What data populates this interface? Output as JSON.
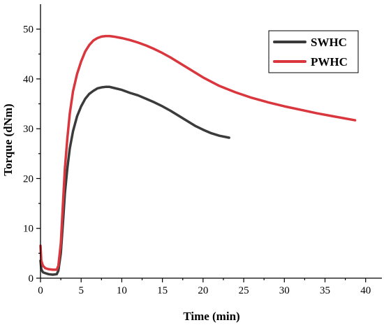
{
  "chart_data": {
    "type": "line",
    "xlabel": "Time (min)",
    "ylabel": "Torque (dNm)",
    "xlim": [
      0,
      42
    ],
    "ylim": [
      0,
      55
    ],
    "xticks": [
      0,
      5,
      10,
      15,
      20,
      25,
      30,
      35,
      40
    ],
    "yticks": [
      0,
      10,
      20,
      30,
      40,
      50
    ],
    "xtick_labels": [
      "0",
      "5",
      "10",
      "15",
      "20",
      "25",
      "30",
      "35",
      "40"
    ],
    "ytick_labels": [
      "0",
      "10",
      "20",
      "30",
      "40",
      "50"
    ],
    "grid": false,
    "legend_position": "top-right",
    "series": [
      {
        "name": "SWHC",
        "color": "#3b3b3b",
        "x": [
          0,
          0.1,
          0.3,
          0.6,
          1.0,
          1.5,
          2.0,
          2.2,
          2.5,
          2.8,
          3.0,
          3.3,
          3.6,
          4.0,
          4.5,
          5.0,
          5.5,
          6.0,
          6.5,
          7.0,
          7.5,
          8.0,
          8.5,
          9.0,
          10.0,
          11.0,
          12.0,
          13.0,
          14.0,
          15.0,
          16.0,
          17.0,
          18.0,
          19.0,
          20.0,
          21.0,
          22.0,
          23.2
        ],
        "values": [
          3.5,
          1.8,
          1.2,
          1.0,
          0.8,
          0.7,
          0.8,
          1.5,
          5.0,
          12.0,
          17.0,
          22.0,
          26.0,
          29.5,
          32.5,
          34.5,
          36.0,
          37.0,
          37.6,
          38.1,
          38.3,
          38.4,
          38.4,
          38.2,
          37.8,
          37.2,
          36.7,
          36.0,
          35.3,
          34.5,
          33.6,
          32.6,
          31.6,
          30.6,
          29.8,
          29.1,
          28.6,
          28.2
        ]
      },
      {
        "name": "PWHC",
        "color": "#d9363e",
        "x": [
          0,
          0.1,
          0.3,
          0.6,
          1.0,
          1.5,
          2.0,
          2.2,
          2.5,
          2.8,
          3.0,
          3.3,
          3.6,
          4.0,
          4.5,
          5.0,
          5.5,
          6.0,
          6.5,
          7.0,
          7.5,
          8.0,
          8.5,
          9.0,
          10.0,
          11.0,
          12.0,
          13.0,
          14.0,
          15.0,
          16.0,
          17.0,
          18.0,
          19.0,
          20.0,
          22.0,
          24.0,
          26.0,
          28.0,
          30.0,
          32.0,
          34.0,
          36.0,
          38.7
        ],
        "values": [
          6.5,
          3.5,
          2.5,
          2.0,
          1.8,
          1.7,
          1.7,
          2.5,
          7.0,
          16.0,
          22.0,
          28.0,
          33.0,
          37.5,
          41.0,
          43.5,
          45.5,
          46.8,
          47.7,
          48.2,
          48.5,
          48.6,
          48.6,
          48.5,
          48.2,
          47.8,
          47.3,
          46.7,
          46.0,
          45.2,
          44.3,
          43.3,
          42.3,
          41.3,
          40.3,
          38.6,
          37.3,
          36.2,
          35.3,
          34.5,
          33.8,
          33.1,
          32.5,
          31.7
        ]
      }
    ]
  }
}
